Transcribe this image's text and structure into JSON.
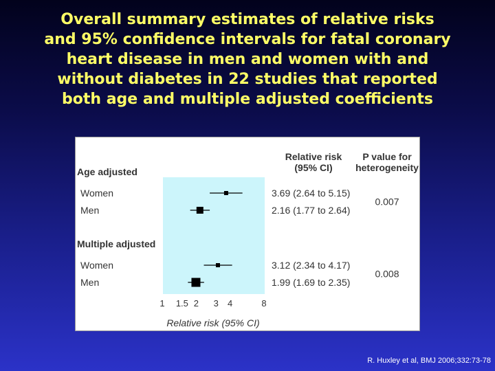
{
  "title": "Overall summary estimates of relative risks\nand 95% confidence intervals for fatal coronary\nheart disease in men and women with and\nwithout diabetes in 22 studies that reported\nboth age and multiple adjusted coefficients",
  "citation": "R. Huxley et al, BMJ  2006;332:73-78",
  "colors": {
    "title": "#ffff66",
    "plot_area": "#ccf5fb",
    "marker": "#000000"
  },
  "chart_data": {
    "type": "forest",
    "xlabel": "Relative risk (95% CI)",
    "x_scale": "log",
    "xlim": [
      1,
      8
    ],
    "xticks": [
      1,
      1.5,
      2,
      3,
      4,
      8
    ],
    "xtick_labels": [
      "1",
      "1.5",
      "2",
      "3",
      "4",
      "8"
    ],
    "column_headers": {
      "rr": "Relative risk\n(95% CI)",
      "p": "P value for\nheterogeneity"
    },
    "groups": [
      {
        "label": "Age adjusted",
        "p_value": "0.007",
        "rows": [
          {
            "label": "Women",
            "rr": 3.69,
            "lo": 2.64,
            "hi": 5.15,
            "text": "3.69 (2.64 to 5.15)",
            "weight": "small"
          },
          {
            "label": "Men",
            "rr": 2.16,
            "lo": 1.77,
            "hi": 2.64,
            "text": "2.16 (1.77 to 2.64)",
            "weight": "medium"
          }
        ]
      },
      {
        "label": "Multiple adjusted",
        "p_value": "0.008",
        "rows": [
          {
            "label": "Women",
            "rr": 3.12,
            "lo": 2.34,
            "hi": 4.17,
            "text": "3.12 (2.34 to 4.17)",
            "weight": "small"
          },
          {
            "label": "Men",
            "rr": 1.99,
            "lo": 1.69,
            "hi": 2.35,
            "text": "1.99 (1.69 to 2.35)",
            "weight": "large"
          }
        ]
      }
    ]
  }
}
